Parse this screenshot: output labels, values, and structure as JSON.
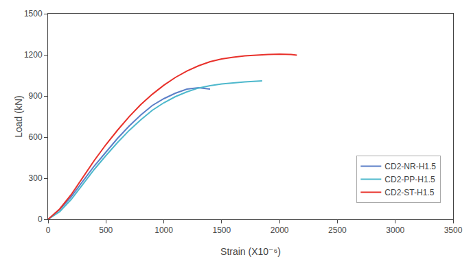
{
  "chart_data": {
    "type": "line",
    "xlabel": "Strain (X10⁻⁶)",
    "ylabel": "Load (kN)",
    "xlim": [
      0,
      3500
    ],
    "ylim": [
      0,
      1500
    ],
    "xticks": [
      0,
      500,
      1000,
      1500,
      2000,
      2500,
      3000,
      3500
    ],
    "yticks": [
      0,
      300,
      600,
      900,
      1200,
      1500
    ],
    "grid": false,
    "legend": "lower right",
    "series": [
      {
        "name": "CD2-NR-H1.5",
        "color": "#5b7fc7",
        "x": [
          0,
          100,
          200,
          300,
          400,
          500,
          600,
          700,
          800,
          900,
          1000,
          1100,
          1200,
          1250,
          1300,
          1350,
          1400
        ],
        "values": [
          0,
          70,
          165,
          280,
          390,
          490,
          590,
          680,
          760,
          830,
          880,
          920,
          950,
          955,
          960,
          955,
          950
        ]
      },
      {
        "name": "CD2-PP-H1.5",
        "color": "#4db8cc",
        "x": [
          0,
          100,
          200,
          300,
          400,
          500,
          600,
          700,
          800,
          900,
          1000,
          1100,
          1200,
          1300,
          1400,
          1500,
          1600,
          1700,
          1800,
          1850
        ],
        "values": [
          0,
          55,
          145,
          255,
          365,
          465,
          560,
          648,
          725,
          795,
          850,
          895,
          930,
          958,
          975,
          988,
          997,
          1003,
          1008,
          1010
        ]
      },
      {
        "name": "CD2-ST-H1.5",
        "color": "#e8302a",
        "x": [
          0,
          100,
          200,
          300,
          400,
          500,
          600,
          700,
          800,
          900,
          1000,
          1100,
          1200,
          1300,
          1400,
          1500,
          1600,
          1700,
          1800,
          1900,
          2000,
          2050,
          2100,
          2150
        ],
        "values": [
          0,
          75,
          180,
          305,
          430,
          545,
          650,
          748,
          836,
          912,
          978,
          1035,
          1082,
          1120,
          1150,
          1170,
          1183,
          1192,
          1198,
          1202,
          1205,
          1205,
          1202,
          1198
        ]
      }
    ]
  }
}
